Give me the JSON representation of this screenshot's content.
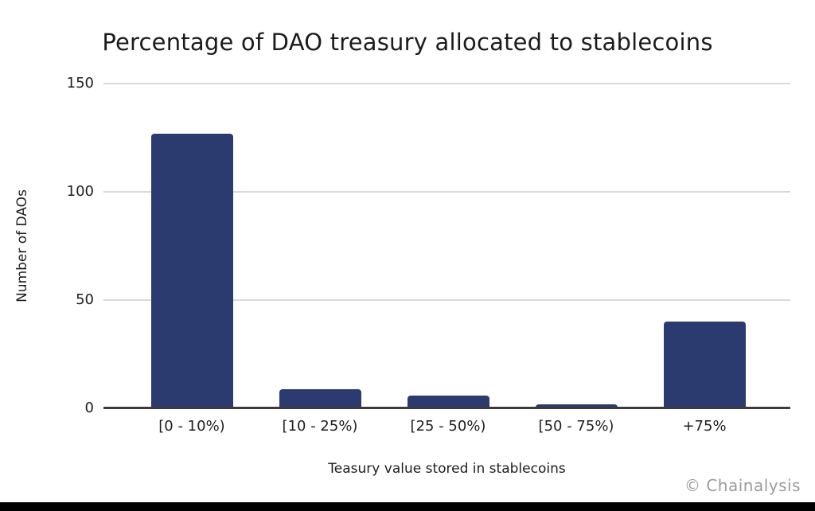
{
  "chart_data": {
    "type": "bar",
    "title": "Percentage of DAO treasury allocated to stablecoins",
    "categories": [
      "[0 - 10%)",
      "[10 - 25%)",
      "[25 - 50%)",
      "[50 - 75%)",
      "+75%"
    ],
    "values": [
      127,
      9,
      6,
      2,
      40
    ],
    "xlabel": "Teasury value stored in stablecoins",
    "ylabel": "Number of DAOs",
    "ylim": [
      0,
      150
    ],
    "yticks": [
      0,
      50,
      100,
      150
    ],
    "grid": true,
    "legend": "none",
    "bar_color": "#2b3b70",
    "gridline_color": "#d9d9d9",
    "baseline_color": "#3b3b3b"
  },
  "watermark": {
    "label": "© Chainalysis",
    "color": "#9b9b9b"
  }
}
